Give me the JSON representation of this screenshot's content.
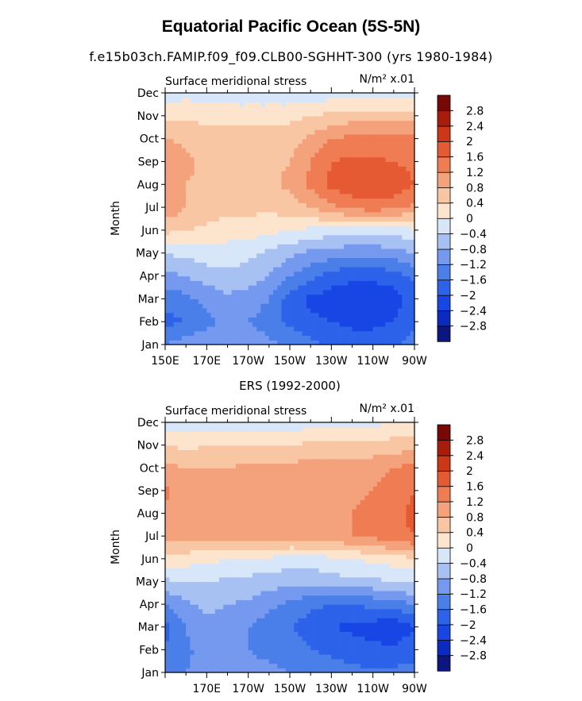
{
  "title": "Equatorial Pacific Ocean (5S-5N)",
  "subtitle": "f.e15b03ch.FAMIP.f09_f09.CLB00-SGHHT-300 (yrs 1980-1984)",
  "colors": {
    "levels": [
      -2.8,
      -2.4,
      -2,
      -1.6,
      -1.2,
      -0.8,
      -0.4,
      0,
      0.4,
      0.8,
      1.2,
      1.6,
      2,
      2.4,
      2.8
    ],
    "fills": [
      "#0b1680",
      "#0b2ac0",
      "#1846e4",
      "#2d62ea",
      "#4a7ee8",
      "#7499ef",
      "#a8c1f3",
      "#d7e6f8",
      "#fde4cc",
      "#f9c6a4",
      "#f4a27b",
      "#ef7c52",
      "#e55a33",
      "#cc3715",
      "#a91c0c",
      "#780806"
    ]
  },
  "chart_data": [
    {
      "type": "heatmap",
      "title": "",
      "left_label": "Surface meridional stress",
      "units": "N/m² x.01",
      "ylabel": "Month",
      "xlabel": "",
      "x": [
        150,
        160,
        170,
        180,
        190,
        200,
        210,
        220,
        230,
        240,
        250,
        260,
        270
      ],
      "xticks": [
        "150E",
        "170E",
        "170W",
        "150W",
        "130W",
        "110W",
        "90W"
      ],
      "ylim": [
        "Jan",
        "Dec"
      ],
      "months": [
        "Jan",
        "Feb",
        "Mar",
        "Apr",
        "May",
        "Jun",
        "Jul",
        "Aug",
        "Sep",
        "Oct",
        "Nov",
        "Dec"
      ],
      "values": [
        [
          -1.2,
          -1.0,
          -0.9,
          -0.8,
          -0.9,
          -1.1,
          -1.3,
          -1.5,
          -1.7,
          -1.8,
          -1.8,
          -1.7,
          -1.4
        ],
        [
          -1.7,
          -1.6,
          -1.3,
          -1.1,
          -1.2,
          -1.4,
          -1.7,
          -1.9,
          -2.0,
          -2.1,
          -2.1,
          -2.0,
          -1.7
        ],
        [
          -1.5,
          -1.3,
          -1.1,
          -0.9,
          -1.0,
          -1.2,
          -1.8,
          -2.1,
          -2.2,
          -2.3,
          -2.3,
          -2.2,
          -1.8
        ],
        [
          -0.9,
          -0.8,
          -0.6,
          -0.5,
          -0.6,
          -0.8,
          -1.2,
          -1.5,
          -1.8,
          -1.9,
          -1.9,
          -1.8,
          -1.5
        ],
        [
          -0.4,
          -0.3,
          -0.2,
          -0.2,
          -0.3,
          -0.5,
          -0.7,
          -0.9,
          -1.0,
          -1.1,
          -1.1,
          -1.0,
          -0.8
        ],
        [
          0.5,
          0.4,
          0.3,
          0.2,
          0.2,
          0.1,
          0.0,
          -0.1,
          -0.2,
          -0.2,
          -0.2,
          -0.2,
          -0.1
        ],
        [
          1.1,
          0.8,
          0.6,
          0.5,
          0.5,
          0.5,
          0.6,
          0.8,
          1.1,
          1.3,
          1.4,
          1.3,
          1.1
        ],
        [
          1.0,
          0.8,
          0.7,
          0.6,
          0.6,
          0.7,
          0.9,
          1.3,
          1.7,
          1.9,
          2.0,
          1.9,
          1.6
        ],
        [
          1.2,
          0.9,
          0.7,
          0.6,
          0.6,
          0.7,
          0.8,
          1.2,
          1.6,
          1.7,
          1.7,
          1.6,
          1.5
        ],
        [
          0.8,
          0.7,
          0.6,
          0.6,
          0.6,
          0.6,
          0.6,
          0.9,
          1.2,
          1.3,
          1.3,
          1.3,
          1.3
        ],
        [
          0.3,
          0.3,
          0.3,
          0.3,
          0.3,
          0.3,
          0.3,
          0.4,
          0.5,
          0.6,
          0.6,
          0.6,
          0.6
        ],
        [
          -0.3,
          -0.1,
          -0.2,
          -0.3,
          -0.3,
          -0.3,
          -0.3,
          -0.3,
          -0.2,
          -0.2,
          -0.2,
          -0.2,
          -0.1
        ]
      ]
    },
    {
      "type": "heatmap",
      "title": "ERS (1992-2000)",
      "left_label": "Surface meridional stress",
      "units": "N/m² x.01",
      "ylabel": "Month",
      "xlabel": "",
      "x": [
        150,
        160,
        170,
        180,
        190,
        200,
        210,
        220,
        230,
        240,
        250,
        260,
        270
      ],
      "xticks": [
        "170E",
        "170W",
        "150W",
        "130W",
        "110W",
        "90W"
      ],
      "ylim": [
        "Jan",
        "Dec"
      ],
      "months": [
        "Jan",
        "Feb",
        "Mar",
        "Apr",
        "May",
        "Jun",
        "Jul",
        "Aug",
        "Sep",
        "Oct",
        "Nov",
        "Dec"
      ],
      "values": [
        [
          -1.4,
          -1.2,
          -1.0,
          -1.0,
          -1.1,
          -1.1,
          -1.2,
          -1.3,
          -1.4,
          -1.5,
          -1.5,
          -1.5,
          -1.4
        ],
        [
          -1.6,
          -1.3,
          -1.0,
          -1.1,
          -1.2,
          -1.3,
          -1.4,
          -1.6,
          -1.7,
          -1.8,
          -1.9,
          -1.9,
          -1.8
        ],
        [
          -1.7,
          -1.2,
          -0.9,
          -1.0,
          -1.2,
          -1.4,
          -1.6,
          -1.8,
          -2.0,
          -2.1,
          -2.2,
          -2.3,
          -2.0
        ],
        [
          -1.2,
          -0.9,
          -0.7,
          -0.8,
          -0.9,
          -1.1,
          -1.3,
          -1.5,
          -1.6,
          -1.6,
          -1.5,
          -1.4,
          -1.2
        ],
        [
          -0.5,
          -0.4,
          -0.4,
          -0.5,
          -0.5,
          -0.6,
          -0.7,
          -0.7,
          -0.6,
          -0.5,
          -0.5,
          -0.4,
          -0.3
        ],
        [
          0.3,
          0.2,
          0.1,
          0.0,
          -0.1,
          -0.1,
          -0.2,
          -0.2,
          -0.1,
          0.0,
          0.1,
          0.2,
          0.3
        ],
        [
          1.0,
          0.9,
          0.9,
          0.9,
          1.0,
          1.0,
          1.0,
          1.0,
          1.1,
          1.2,
          1.3,
          1.5,
          1.6
        ],
        [
          1.1,
          0.9,
          0.9,
          1.0,
          1.1,
          1.1,
          1.1,
          1.2,
          1.2,
          1.2,
          1.3,
          1.5,
          1.7
        ],
        [
          1.3,
          1.0,
          0.9,
          1.0,
          1.0,
          1.0,
          1.1,
          1.2,
          1.1,
          1.1,
          1.2,
          1.4,
          1.6
        ],
        [
          0.9,
          0.8,
          0.8,
          0.8,
          0.9,
          0.9,
          0.9,
          1.0,
          1.0,
          1.0,
          1.1,
          1.2,
          1.4
        ],
        [
          0.4,
          0.3,
          0.4,
          0.4,
          0.4,
          0.4,
          0.4,
          0.5,
          0.5,
          0.5,
          0.5,
          0.6,
          0.6
        ],
        [
          -0.2,
          -0.3,
          -0.2,
          -0.2,
          -0.3,
          -0.3,
          -0.2,
          -0.2,
          -0.2,
          -0.2,
          -0.1,
          0.0,
          0.0
        ]
      ]
    }
  ]
}
